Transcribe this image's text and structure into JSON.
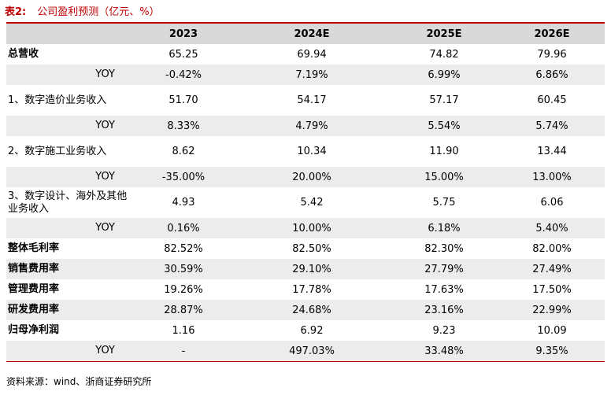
{
  "title": {
    "label": "表2:",
    "text": "公司盈利预测（亿元、%）"
  },
  "table": {
    "columns": [
      "",
      "2023",
      "2024E",
      "2025E",
      "2026E"
    ],
    "rows": [
      {
        "name": "总营收",
        "values": [
          "65.25",
          "69.94",
          "74.82",
          "79.96"
        ]
      },
      {
        "name": "YOY",
        "values": [
          "-0.42%",
          "7.19%",
          "6.99%",
          "6.86%"
        ]
      },
      {
        "name": "1、数字造价业务收入",
        "values": [
          "51.70",
          "54.17",
          "57.17",
          "60.45"
        ]
      },
      {
        "name": "YOY",
        "values": [
          "8.33%",
          "4.79%",
          "5.54%",
          "5.74%"
        ]
      },
      {
        "name": "2、数字施工业务收入",
        "values": [
          "8.62",
          "10.34",
          "11.90",
          "13.44"
        ]
      },
      {
        "name": "YOY",
        "values": [
          "-35.00%",
          "20.00%",
          "15.00%",
          "13.00%"
        ]
      },
      {
        "name": "3、数字设计、海外及其他业务收入",
        "values": [
          "4.93",
          "5.42",
          "5.75",
          "6.06"
        ]
      },
      {
        "name": "YOY",
        "values": [
          "0.16%",
          "10.00%",
          "6.18%",
          "5.40%"
        ]
      },
      {
        "name": "整体毛利率",
        "values": [
          "82.52%",
          "82.50%",
          "82.30%",
          "82.00%"
        ]
      },
      {
        "name": "销售费用率",
        "values": [
          "30.59%",
          "29.10%",
          "27.79%",
          "27.49%"
        ]
      },
      {
        "name": "管理费用率",
        "values": [
          "19.26%",
          "17.78%",
          "17.63%",
          "17.50%"
        ]
      },
      {
        "name": "研发费用率",
        "values": [
          "28.87%",
          "24.68%",
          "23.16%",
          "22.99%"
        ]
      },
      {
        "name": "归母净利润",
        "values": [
          "1.16",
          "6.92",
          "9.23",
          "10.09"
        ]
      },
      {
        "name": "YOY",
        "values": [
          "-",
          "497.03%",
          "33.48%",
          "9.35%"
        ]
      }
    ]
  },
  "source": "资料来源：wind、浙商证券研究所"
}
